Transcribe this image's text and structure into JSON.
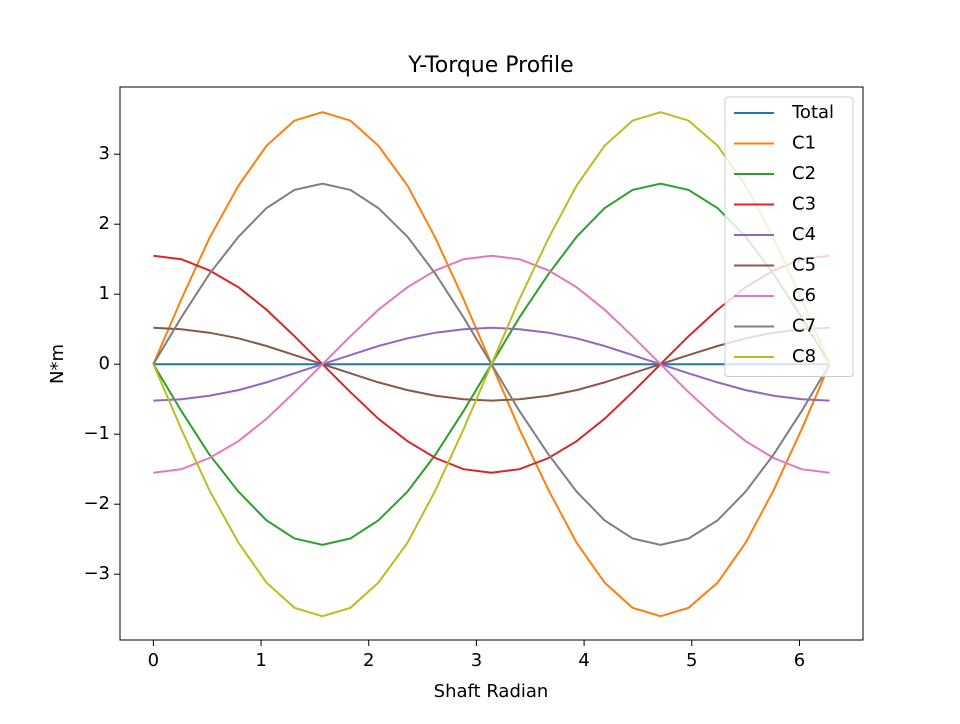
{
  "chart_data": {
    "type": "line",
    "title": "Y-Torque Profile",
    "x_label": "Shaft Radian",
    "y_label": "N*m",
    "x": [
      0,
      0.26,
      0.52,
      0.79,
      1.05,
      1.31,
      1.57,
      1.83,
      2.09,
      2.36,
      2.62,
      2.88,
      3.14,
      3.4,
      3.67,
      3.93,
      4.19,
      4.45,
      4.71,
      4.97,
      5.24,
      5.5,
      5.76,
      6.02,
      6.28
    ],
    "series": [
      {
        "name": "Total",
        "color": "#1f77b4",
        "values": [
          0,
          0,
          0,
          0,
          0,
          0,
          0,
          0,
          0,
          0,
          0,
          0,
          0,
          0,
          0,
          0,
          0,
          0,
          0,
          0,
          0,
          0,
          0,
          0,
          0
        ]
      },
      {
        "name": "C1",
        "color": "#ff7f0e",
        "values": [
          0,
          0.93,
          1.8,
          2.55,
          3.12,
          3.48,
          3.6,
          3.48,
          3.12,
          2.55,
          1.8,
          0.93,
          0,
          -0.93,
          -1.8,
          -2.55,
          -3.12,
          -3.48,
          -3.6,
          -3.48,
          -3.12,
          -2.55,
          -1.8,
          -0.93,
          0
        ]
      },
      {
        "name": "C2",
        "color": "#2ca02c",
        "values": [
          0,
          -0.67,
          -1.29,
          -1.82,
          -2.23,
          -2.49,
          -2.58,
          -2.49,
          -2.23,
          -1.82,
          -1.29,
          -0.67,
          0,
          0.67,
          1.29,
          1.82,
          2.23,
          2.49,
          2.58,
          2.49,
          2.23,
          1.82,
          1.29,
          0.67,
          0
        ]
      },
      {
        "name": "C3",
        "color": "#d62728",
        "values": [
          1.55,
          1.5,
          1.34,
          1.1,
          0.78,
          0.4,
          0,
          -0.4,
          -0.78,
          -1.1,
          -1.34,
          -1.5,
          -1.55,
          -1.5,
          -1.34,
          -1.1,
          -0.78,
          -0.4,
          0,
          0.4,
          0.78,
          1.1,
          1.34,
          1.5,
          1.55
        ]
      },
      {
        "name": "C4",
        "color": "#9467bd",
        "values": [
          -0.52,
          -0.5,
          -0.45,
          -0.37,
          -0.26,
          -0.13,
          0,
          0.13,
          0.26,
          0.37,
          0.45,
          0.5,
          0.52,
          0.5,
          0.45,
          0.37,
          0.26,
          0.13,
          0,
          -0.13,
          -0.26,
          -0.37,
          -0.45,
          -0.5,
          -0.52
        ]
      },
      {
        "name": "C5",
        "color": "#8c564b",
        "values": [
          0.52,
          0.5,
          0.45,
          0.37,
          0.26,
          0.13,
          0,
          -0.13,
          -0.26,
          -0.37,
          -0.45,
          -0.5,
          -0.52,
          -0.5,
          -0.45,
          -0.37,
          -0.26,
          -0.13,
          0,
          0.13,
          0.26,
          0.37,
          0.45,
          0.5,
          0.52
        ]
      },
      {
        "name": "C6",
        "color": "#e377c2",
        "values": [
          -1.55,
          -1.5,
          -1.34,
          -1.1,
          -0.78,
          -0.4,
          0,
          0.4,
          0.78,
          1.1,
          1.34,
          1.5,
          1.55,
          1.5,
          1.34,
          1.1,
          0.78,
          0.4,
          0,
          -0.4,
          -0.78,
          -1.1,
          -1.34,
          -1.5,
          -1.55
        ]
      },
      {
        "name": "C7",
        "color": "#7f7f7f",
        "values": [
          0,
          0.67,
          1.29,
          1.82,
          2.23,
          2.49,
          2.58,
          2.49,
          2.23,
          1.82,
          1.29,
          0.67,
          0,
          -0.67,
          -1.29,
          -1.82,
          -2.23,
          -2.49,
          -2.58,
          -2.49,
          -2.23,
          -1.82,
          -1.29,
          -0.67,
          0
        ]
      },
      {
        "name": "C8",
        "color": "#bcbd22",
        "values": [
          0,
          -0.93,
          -1.8,
          -2.55,
          -3.12,
          -3.48,
          -3.6,
          -3.48,
          -3.12,
          -2.55,
          -1.8,
          -0.93,
          0,
          0.93,
          1.8,
          2.55,
          3.12,
          3.48,
          3.6,
          3.48,
          3.12,
          2.55,
          1.8,
          0.93,
          0
        ]
      }
    ],
    "xlim": [
      -0.31,
      6.59
    ],
    "xticks": [
      0,
      1,
      2,
      3,
      4,
      5,
      6
    ],
    "ylim": [
      -3.94,
      3.96
    ],
    "yticks": [
      {
        "value": -3,
        "label": "−3"
      },
      {
        "value": -2,
        "label": "−2"
      },
      {
        "value": -1,
        "label": "−1"
      },
      0,
      1,
      2,
      3
    ],
    "legend": "upper right"
  }
}
